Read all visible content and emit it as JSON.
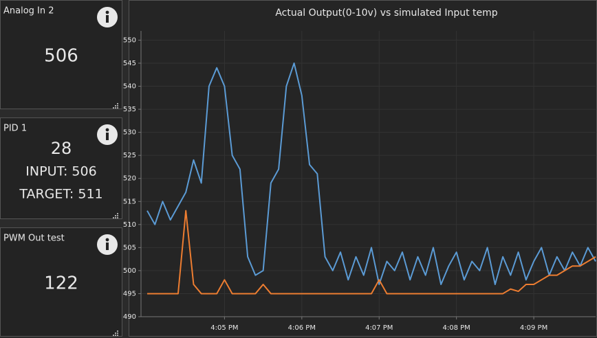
{
  "widgets": [
    {
      "title": "Analog In 2",
      "lines": [
        "506"
      ]
    },
    {
      "title": "PID 1",
      "lines": [
        "28",
        "INPUT: 506",
        "TARGET: 511"
      ]
    },
    {
      "title": "PWM Out test",
      "lines": [
        "122"
      ]
    }
  ],
  "chart_data": {
    "type": "line",
    "title": "Actual Output(0-10v) vs simulated Input temp",
    "x": [
      964.0,
      964.1,
      964.2,
      964.3,
      964.4,
      964.5,
      964.6,
      964.7,
      964.8,
      964.9,
      965.0,
      965.1,
      965.2,
      965.3,
      965.4,
      965.5,
      965.6,
      965.7,
      965.8,
      965.9,
      966.0,
      966.1,
      966.2,
      966.3,
      966.4,
      966.5,
      966.6,
      966.7,
      966.8,
      966.9,
      967.0,
      967.1,
      967.2,
      967.3,
      967.4,
      967.5,
      967.6,
      967.7,
      967.8,
      967.9,
      968.0,
      968.1,
      968.2,
      968.3,
      968.4,
      968.5,
      968.6,
      968.7,
      968.8,
      968.9,
      969.0,
      969.1,
      969.2,
      969.3,
      969.4,
      969.5,
      969.6,
      969.7,
      969.8
    ],
    "series": [
      {
        "color": "#5b9bd5",
        "values": [
          513,
          510,
          515,
          511,
          514,
          517,
          524,
          519,
          540,
          544,
          540,
          525,
          522,
          503,
          499,
          500,
          519,
          522,
          540,
          545,
          538,
          523,
          521,
          503,
          500,
          504,
          498,
          503,
          499,
          505,
          497,
          502,
          500,
          504,
          498,
          503,
          499,
          505,
          497,
          501,
          504,
          498,
          502,
          500,
          505,
          497,
          503,
          499,
          504,
          498,
          502,
          505,
          499,
          503,
          500,
          504,
          501,
          505,
          502
        ]
      },
      {
        "color": "#ed7d31",
        "values": [
          495,
          495,
          495,
          495,
          495,
          513,
          497,
          495,
          495,
          495,
          498,
          495,
          495,
          495,
          495,
          497,
          495,
          495,
          495,
          495,
          495,
          495,
          495,
          495,
          495,
          495,
          495,
          495,
          495,
          495,
          498,
          495,
          495,
          495,
          495,
          495,
          495,
          495,
          495,
          495,
          495,
          495,
          495,
          495,
          495,
          495,
          495,
          496,
          495.5,
          497,
          497,
          498,
          499,
          499,
          500,
          501,
          501,
          502,
          503
        ]
      }
    ],
    "xlim": [
      963.92,
      969.8
    ],
    "xticks": [
      {
        "value": 965,
        "label": "4:05 PM"
      },
      {
        "value": 966,
        "label": "4:06 PM"
      },
      {
        "value": 967,
        "label": "4:07 PM"
      },
      {
        "value": 968,
        "label": "4:08 PM"
      },
      {
        "value": 969,
        "label": "4:09 PM"
      }
    ],
    "ylim": [
      490,
      552
    ],
    "yticks": [
      490,
      495,
      500,
      505,
      510,
      515,
      520,
      525,
      530,
      535,
      540,
      545,
      550
    ],
    "grid": true
  }
}
